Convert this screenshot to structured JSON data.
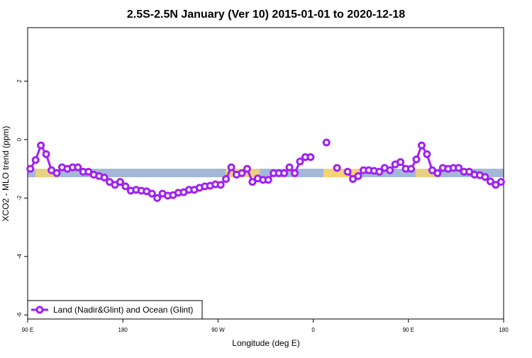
{
  "chart_data": {
    "type": "line",
    "title": "2.5S-2.5N January (Ver 10)   2015-01-01 to 2020-12-18",
    "x_label": "Longitude (deg E)",
    "y_label": "XCO2 - MLO trend (ppm)",
    "xlim": [
      90,
      540
    ],
    "xticks": [
      {
        "value": 90,
        "label": "90 E"
      },
      180,
      {
        "value": 270,
        "label": "90 W"
      },
      {
        "value": 360,
        "label": "0"
      },
      {
        "value": 450,
        "label": "90 E"
      },
      {
        "value": 540,
        "label": "180"
      }
    ],
    "ylim": [
      -6.14,
      3.83
    ],
    "yticks": [
      -6,
      -4,
      -2,
      0,
      2
    ],
    "legend": "bottom-left",
    "x": [
      92.5,
      97.5,
      102.5,
      107.5,
      112.5,
      117.5,
      122.5,
      127.5,
      132.5,
      137.5,
      142.5,
      147.5,
      152.5,
      157.5,
      162.5,
      167.5,
      172.5,
      177.5,
      182.5,
      187.5,
      192.5,
      197.5,
      202.5,
      207.5,
      212.5,
      217.5,
      222.5,
      227.5,
      232.5,
      237.5,
      242.5,
      247.5,
      252.5,
      257.5,
      262.5,
      267.5,
      272.5,
      277.5,
      282.5,
      287.5,
      292.5,
      297.5,
      302.5,
      307.5,
      312.5,
      317.5,
      322.5,
      327.5,
      332.5,
      337.5,
      342.5,
      347.5,
      352.5,
      357.5,
      362.5,
      367.5,
      372.5,
      377.5,
      382.5,
      387.5,
      392.5,
      397.5,
      402.5,
      407.5,
      412.5,
      417.5,
      422.5,
      427.5,
      432.5,
      437.5,
      442.5,
      447.5,
      452.5,
      457.5,
      462.5,
      467.5,
      472.5,
      477.5,
      482.5,
      487.5,
      492.5,
      497.5,
      502.5,
      507.5,
      512.5,
      517.5,
      522.5,
      527.5,
      532.5,
      537.5
    ],
    "series": [
      {
        "name": "Land (Nadir&Glint) and Ocean (Glint)",
        "color": "#a020f0",
        "values": [
          -1.0,
          -0.7,
          -0.2,
          -0.5,
          -1.05,
          -1.15,
          -0.95,
          -1.0,
          -0.95,
          -0.95,
          -1.1,
          -1.1,
          -1.2,
          -1.25,
          -1.3,
          -1.45,
          -1.55,
          -1.45,
          -1.6,
          -1.75,
          -1.72,
          -1.75,
          -1.77,
          -1.85,
          -2.0,
          -1.85,
          -1.92,
          -1.9,
          -1.82,
          -1.8,
          -1.72,
          -1.72,
          -1.65,
          -1.6,
          -1.58,
          -1.53,
          -1.55,
          -1.35,
          -0.95,
          -1.2,
          -1.15,
          -1.0,
          -1.45,
          -1.33,
          -1.38,
          -1.38,
          -1.15,
          -1.15,
          -1.15,
          -0.95,
          -1.15,
          -0.75,
          -0.6,
          -0.6,
          null,
          null,
          -0.1,
          null,
          -0.97,
          null,
          -1.1,
          -1.35,
          -1.25,
          -1.05,
          -1.05,
          -1.07,
          -1.1,
          -0.97,
          -1.05,
          -0.85,
          -0.77,
          -1.0,
          -1.0,
          -0.68,
          -0.2,
          -0.5,
          -1.05,
          -1.15,
          -0.97,
          -1.0,
          -0.97,
          -0.97,
          -1.1,
          -1.1,
          -1.2,
          -1.22,
          -1.28,
          -1.43,
          -1.55,
          -1.45
        ]
      }
    ]
  }
}
